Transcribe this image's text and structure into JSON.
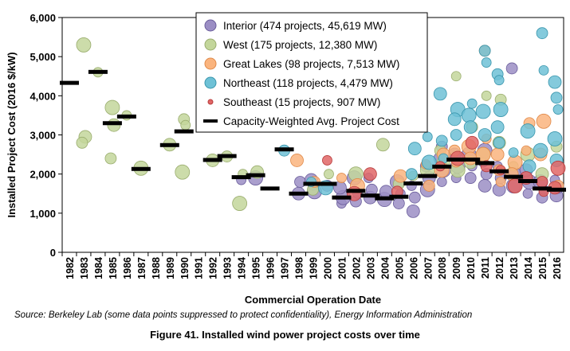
{
  "figure": {
    "caption": "Figure 41. Installed wind power project costs over time",
    "source": "Source: Berkeley Lab (some data points suppressed to protect confidentiality), Energy Information Administration"
  },
  "chart_data": {
    "type": "scatter",
    "title": "",
    "xlabel": "Commercial Operation Date",
    "ylabel": "Installed Project Cost (2016 $/kW)",
    "ylim": [
      0,
      6000
    ],
    "yticks": [
      0,
      1000,
      2000,
      3000,
      4000,
      5000,
      6000
    ],
    "ytick_labels": [
      "0",
      "1,000",
      "2,000",
      "3,000",
      "4,000",
      "5,000",
      "6,000"
    ],
    "categories": [
      "1982",
      "1983",
      "1984",
      "1985",
      "1986",
      "1987",
      "1988",
      "1989",
      "1990",
      "1991",
      "1992",
      "1993",
      "1994",
      "1995",
      "1996",
      "1997",
      "1998",
      "1999",
      "2000",
      "2001",
      "2002",
      "2003",
      "2004",
      "2005",
      "2006",
      "2007",
      "2008",
      "2009",
      "2010",
      "2011",
      "2012",
      "2013",
      "2014",
      "2015",
      "2016"
    ],
    "grid": false,
    "legend_position": "top-center",
    "series": [
      {
        "name": "Interior (474 projects, 45,619 MW)",
        "marker": "circle",
        "fill": "#9b8ec4",
        "stroke": "#6b5e9c",
        "points": [
          [
            "1994",
            1850
          ],
          [
            "1995",
            1900
          ],
          [
            "1998",
            1500
          ],
          [
            "1998",
            1800
          ],
          [
            "1999",
            1700
          ],
          [
            "1999",
            1550
          ],
          [
            "1999",
            1850
          ],
          [
            "2000",
            1700
          ],
          [
            "2001",
            1250
          ],
          [
            "2001",
            1400
          ],
          [
            "2001",
            1650
          ],
          [
            "2002",
            1300
          ],
          [
            "2002",
            1500
          ],
          [
            "2002",
            1900
          ],
          [
            "2003",
            1400
          ],
          [
            "2003",
            1600
          ],
          [
            "2003",
            1900
          ],
          [
            "2004",
            1350
          ],
          [
            "2004",
            1550
          ],
          [
            "2005",
            1250
          ],
          [
            "2005",
            1500
          ],
          [
            "2005",
            1800
          ],
          [
            "2006",
            1050
          ],
          [
            "2006",
            1400
          ],
          [
            "2006",
            1700
          ],
          [
            "2007",
            1600
          ],
          [
            "2007",
            1900
          ],
          [
            "2007",
            2200
          ],
          [
            "2008",
            1800
          ],
          [
            "2008",
            2100
          ],
          [
            "2008",
            2400
          ],
          [
            "2008",
            2700
          ],
          [
            "2009",
            1900
          ],
          [
            "2009",
            2200
          ],
          [
            "2009",
            2500
          ],
          [
            "2010",
            1900
          ],
          [
            "2010",
            2200
          ],
          [
            "2010",
            2500
          ],
          [
            "2011",
            1700
          ],
          [
            "2011",
            2000
          ],
          [
            "2011",
            2300
          ],
          [
            "2011",
            2600
          ],
          [
            "2012",
            1600
          ],
          [
            "2012",
            1900
          ],
          [
            "2012",
            2200
          ],
          [
            "2013",
            1700
          ],
          [
            "2013",
            2000
          ],
          [
            "2013",
            4700
          ],
          [
            "2014",
            1500
          ],
          [
            "2014",
            1800
          ],
          [
            "2014",
            2100
          ],
          [
            "2015",
            1400
          ],
          [
            "2015",
            1600
          ],
          [
            "2015",
            1800
          ],
          [
            "2016",
            1450
          ],
          [
            "2016",
            1650
          ],
          [
            "2016",
            1850
          ]
        ]
      },
      {
        "name": "West (175 projects, 12,380 MW)",
        "marker": "circle",
        "fill": "#c3d69b",
        "stroke": "#9aad6e",
        "points": [
          [
            "1983",
            5300
          ],
          [
            "1983",
            2950
          ],
          [
            "1983",
            2800
          ],
          [
            "1984",
            4600
          ],
          [
            "1985",
            3700
          ],
          [
            "1985",
            3250
          ],
          [
            "1985",
            2400
          ],
          [
            "1986",
            3500
          ],
          [
            "1987",
            2150
          ],
          [
            "1989",
            2750
          ],
          [
            "1990",
            3400
          ],
          [
            "1990",
            3250
          ],
          [
            "1990",
            2050
          ],
          [
            "1992",
            2350
          ],
          [
            "1993",
            2450
          ],
          [
            "1994",
            2000
          ],
          [
            "1994",
            1250
          ],
          [
            "1995",
            2050
          ],
          [
            "1999",
            1600
          ],
          [
            "2000",
            2000
          ],
          [
            "2002",
            2000
          ],
          [
            "2004",
            2750
          ],
          [
            "2005",
            1750
          ],
          [
            "2006",
            1950
          ],
          [
            "2007",
            2100
          ],
          [
            "2008",
            2300
          ],
          [
            "2008",
            2600
          ],
          [
            "2009",
            4500
          ],
          [
            "2009",
            2100
          ],
          [
            "2010",
            2300
          ],
          [
            "2010",
            3200
          ],
          [
            "2011",
            4000
          ],
          [
            "2011",
            2500
          ],
          [
            "2012",
            2800
          ],
          [
            "2012",
            3900
          ],
          [
            "2013",
            2200
          ],
          [
            "2014",
            2500
          ],
          [
            "2015",
            2000
          ],
          [
            "2016",
            2700
          ]
        ]
      },
      {
        "name": "Great Lakes (98 projects, 7,513 MW)",
        "marker": "circle",
        "fill": "#fab47e",
        "stroke": "#e08a4a",
        "points": [
          [
            "1998",
            2350
          ],
          [
            "1999",
            1800
          ],
          [
            "2001",
            1900
          ],
          [
            "2002",
            1700
          ],
          [
            "2005",
            1950
          ],
          [
            "2007",
            1700
          ],
          [
            "2007",
            2250
          ],
          [
            "2008",
            2100
          ],
          [
            "2008",
            2500
          ],
          [
            "2009",
            2600
          ],
          [
            "2009",
            2300
          ],
          [
            "2010",
            2700
          ],
          [
            "2010",
            2400
          ],
          [
            "2011",
            5150
          ],
          [
            "2011",
            2900
          ],
          [
            "2011",
            2500
          ],
          [
            "2012",
            2500
          ],
          [
            "2012",
            2100
          ],
          [
            "2012",
            1800
          ],
          [
            "2013",
            2300
          ],
          [
            "2013",
            2000
          ],
          [
            "2014",
            3300
          ],
          [
            "2014",
            2600
          ],
          [
            "2015",
            3350
          ],
          [
            "2015",
            2500
          ],
          [
            "2016",
            1700
          ]
        ]
      },
      {
        "name": "Northeast (118 projects, 4,479 MW)",
        "marker": "circle",
        "fill": "#6ec1d6",
        "stroke": "#3a96ad",
        "points": [
          [
            "1997",
            2600
          ],
          [
            "1999",
            1800
          ],
          [
            "2000",
            1650
          ],
          [
            "2006",
            2650
          ],
          [
            "2006",
            2000
          ],
          [
            "2007",
            2950
          ],
          [
            "2007",
            2300
          ],
          [
            "2008",
            4050
          ],
          [
            "2008",
            2850
          ],
          [
            "2008",
            2400
          ],
          [
            "2009",
            3650
          ],
          [
            "2009",
            3400
          ],
          [
            "2009",
            3000
          ],
          [
            "2010",
            3800
          ],
          [
            "2010",
            3500
          ],
          [
            "2010",
            3200
          ],
          [
            "2011",
            5150
          ],
          [
            "2011",
            4850
          ],
          [
            "2011",
            3600
          ],
          [
            "2011",
            3000
          ],
          [
            "2012",
            4550
          ],
          [
            "2012",
            4400
          ],
          [
            "2012",
            3650
          ],
          [
            "2012",
            3200
          ],
          [
            "2012",
            2800
          ],
          [
            "2013",
            2550
          ],
          [
            "2014",
            3100
          ],
          [
            "2014",
            2200
          ],
          [
            "2015",
            5600
          ],
          [
            "2015",
            4650
          ],
          [
            "2015",
            2600
          ],
          [
            "2016",
            4350
          ],
          [
            "2016",
            3950
          ],
          [
            "2016",
            3650
          ],
          [
            "2016",
            2900
          ],
          [
            "2016",
            2350
          ]
        ]
      },
      {
        "name": "Southeast (15 projects, 907 MW)",
        "marker": "circle",
        "fill": "#e06666",
        "stroke": "#b83b3b",
        "points": [
          [
            "2000",
            2350
          ],
          [
            "2002",
            1500
          ],
          [
            "2003",
            2000
          ],
          [
            "2005",
            1550
          ],
          [
            "2008",
            2200
          ],
          [
            "2009",
            2400
          ],
          [
            "2010",
            2800
          ],
          [
            "2011",
            2200
          ],
          [
            "2012",
            2100
          ],
          [
            "2013",
            1700
          ],
          [
            "2014",
            1900
          ],
          [
            "2015",
            1800
          ],
          [
            "2015",
            1550
          ],
          [
            "2016",
            2150
          ],
          [
            "2016",
            1650
          ]
        ]
      },
      {
        "name": "Capacity-Weighted Avg. Project Cost",
        "marker": "dash",
        "fill": "#000000",
        "stroke": "#000000",
        "points": [
          [
            "1982",
            4330
          ],
          [
            "1984",
            4610
          ],
          [
            "1985",
            3300
          ],
          [
            "1986",
            3470
          ],
          [
            "1987",
            2130
          ],
          [
            "1989",
            2740
          ],
          [
            "1990",
            3090
          ],
          [
            "1992",
            2360
          ],
          [
            "1993",
            2460
          ],
          [
            "1994",
            1920
          ],
          [
            "1995",
            1970
          ],
          [
            "1996",
            1630
          ],
          [
            "1997",
            2630
          ],
          [
            "1998",
            1500
          ],
          [
            "1999",
            1750
          ],
          [
            "2000",
            1750
          ],
          [
            "2001",
            1400
          ],
          [
            "2002",
            1570
          ],
          [
            "2003",
            1450
          ],
          [
            "2004",
            1380
          ],
          [
            "2005",
            1420
          ],
          [
            "2006",
            1760
          ],
          [
            "2007",
            1950
          ],
          [
            "2008",
            2190
          ],
          [
            "2009",
            2370
          ],
          [
            "2010",
            2370
          ],
          [
            "2011",
            2280
          ],
          [
            "2012",
            2070
          ],
          [
            "2013",
            1930
          ],
          [
            "2014",
            1820
          ],
          [
            "2015",
            1630
          ],
          [
            "2016",
            1600
          ]
        ]
      }
    ]
  }
}
